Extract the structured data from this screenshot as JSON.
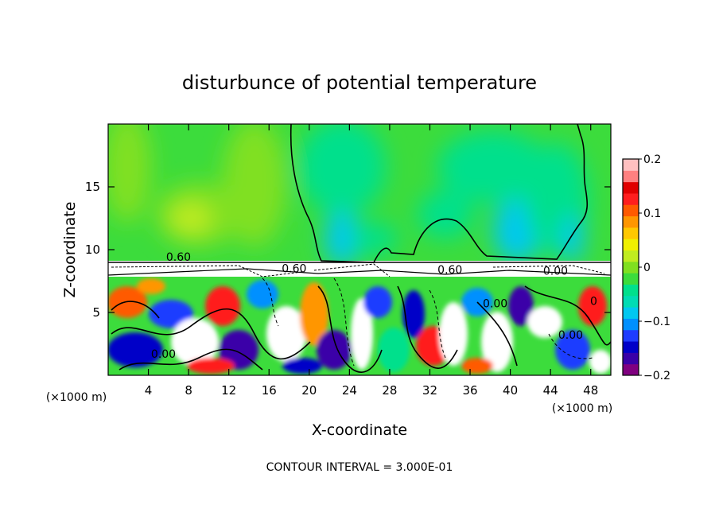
{
  "chart_data": {
    "type": "heatmap",
    "title": "disturbunce of potential temperature",
    "xlabel": "X-coordinate",
    "ylabel": "Z-coordinate",
    "xunit_left": "(×1000 m)",
    "xunit_right": "(×1000 m)",
    "footer": "CONTOUR INTERVAL = 3.000E-01",
    "xlim": [
      0,
      50
    ],
    "ylim": [
      0,
      20
    ],
    "xticks": [
      4,
      8,
      12,
      16,
      20,
      24,
      28,
      32,
      36,
      40,
      44,
      48
    ],
    "yticks": [
      5,
      10,
      15
    ],
    "colorbar": {
      "range": [
        -0.2,
        0.2
      ],
      "ticks": [
        {
          "value": 0.2,
          "label": "0.2"
        },
        {
          "value": 0.1,
          "label": "0.1"
        },
        {
          "value": 0,
          "label": "0"
        },
        {
          "value": -0.1,
          "label": "−0.1"
        },
        {
          "value": -0.2,
          "label": "−0.2"
        }
      ],
      "colors": [
        "#800080",
        "#3a00a8",
        "#0000c8",
        "#1e3cff",
        "#0090ff",
        "#00c8f0",
        "#00dcb4",
        "#00e08c",
        "#3cdc3c",
        "#80e020",
        "#c0ec20",
        "#f0f000",
        "#ffc800",
        "#ff9600",
        "#ff5a00",
        "#ff1e1e",
        "#e00000",
        "#ff8080",
        "#ffc0c0"
      ]
    },
    "contour_labels": [
      {
        "text": "0.60",
        "x": 7.0,
        "y": 9.1
      },
      {
        "text": "0.60",
        "x": 18.5,
        "y": 8.2
      },
      {
        "text": "0.60",
        "x": 34.0,
        "y": 8.1
      },
      {
        "text": "0.00",
        "x": 44.5,
        "y": 8.0
      },
      {
        "text": "0.00",
        "x": 38.5,
        "y": 5.4
      },
      {
        "text": "0.00",
        "x": 46.0,
        "y": 2.9
      },
      {
        "text": "0.00",
        "x": 5.5,
        "y": 1.4
      },
      {
        "text": "0",
        "x": 48.3,
        "y": 5.6
      }
    ]
  }
}
